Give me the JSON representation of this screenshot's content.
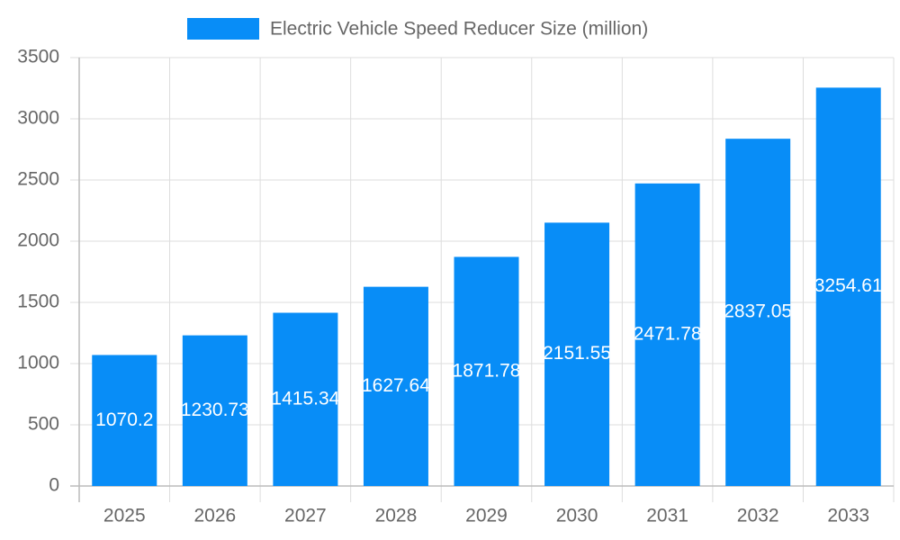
{
  "chart_data": {
    "type": "bar",
    "categories": [
      "2025",
      "2026",
      "2027",
      "2028",
      "2029",
      "2030",
      "2031",
      "2032",
      "2033"
    ],
    "series": [
      {
        "name": "Electric Vehicle Speed Reducer Size (million)",
        "color": "#088df7",
        "values": [
          1070.2,
          1230.73,
          1415.34,
          1627.64,
          1871.78,
          2151.55,
          2471.78,
          2837.05,
          3254.61
        ]
      }
    ],
    "ylim": [
      0,
      3500
    ],
    "yticks": [
      0,
      500,
      1000,
      1500,
      2000,
      2500,
      3000,
      3500
    ],
    "grid": true,
    "legend": "top"
  }
}
